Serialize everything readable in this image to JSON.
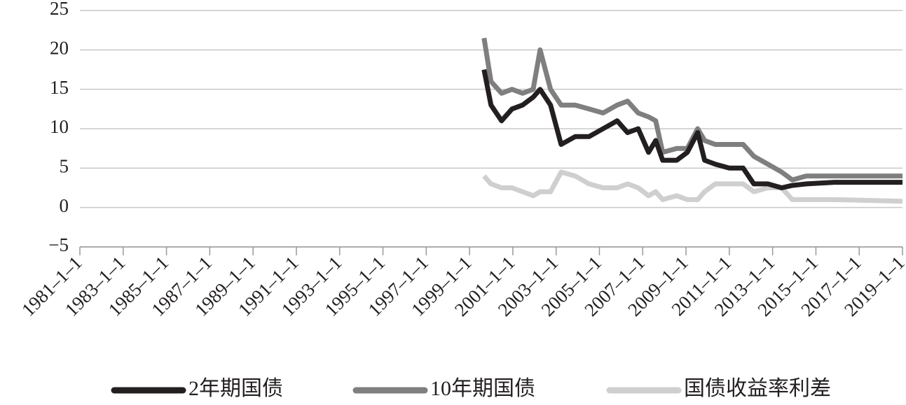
{
  "chart_data": {
    "type": "line",
    "x": [
      1999.67,
      1999.99,
      2000.48,
      2000.96,
      2001.45,
      2001.94,
      2002.26,
      2002.74,
      2003.23,
      2003.88,
      2004.52,
      2005.17,
      2005.82,
      2006.3,
      2006.79,
      2007.27,
      2007.6,
      2007.92,
      2008.57,
      2009.06,
      2009.54,
      2009.86,
      2010.35,
      2011.0,
      2011.64,
      2012.13,
      2012.78,
      2013.42,
      2013.91,
      2014.56,
      2015.85,
      2019.0
    ],
    "series": [
      {
        "name": "2年期国债",
        "color": "#231f20",
        "values": [
          17.5,
          13,
          11,
          12.5,
          13,
          14,
          15,
          13,
          8,
          9,
          9,
          10,
          11,
          9.5,
          10,
          7,
          8.5,
          6,
          6,
          7,
          9.5,
          6,
          5.5,
          5,
          5,
          3,
          3,
          2.5,
          2.8,
          3,
          3.2,
          3.2
        ]
      },
      {
        "name": "10年期国债",
        "color": "#7f7f7f",
        "values": [
          21.5,
          16,
          14.5,
          15,
          14.5,
          15,
          20,
          15,
          13,
          13,
          12.5,
          12,
          13,
          13.5,
          12,
          11.5,
          11,
          7,
          7.5,
          7.5,
          10,
          8.5,
          8,
          8,
          8,
          6.5,
          5.5,
          4.5,
          3.5,
          4,
          4,
          4
        ]
      },
      {
        "name": "国债收益率利差",
        "color": "#cfcfcf",
        "values": [
          4,
          3,
          2.5,
          2.5,
          2,
          1.5,
          2,
          2,
          4.5,
          4,
          3,
          2.5,
          2.5,
          3,
          2.5,
          1.5,
          2,
          1,
          1.5,
          1,
          1,
          2,
          3,
          3,
          3,
          2,
          2.5,
          2.5,
          1,
          1,
          1,
          0.8
        ]
      }
    ],
    "xlim": [
      1981,
      2019
    ],
    "xticks": [
      {
        "value": 1981,
        "label": "1981–1–1"
      },
      {
        "value": 1983,
        "label": "1983–1–1"
      },
      {
        "value": 1985,
        "label": "1985–1–1"
      },
      {
        "value": 1987,
        "label": "1987–1–1"
      },
      {
        "value": 1989,
        "label": "1989–1–1"
      },
      {
        "value": 1991,
        "label": "1991–1–1"
      },
      {
        "value": 1993,
        "label": "1993–1–1"
      },
      {
        "value": 1995,
        "label": "1995–1–1"
      },
      {
        "value": 1997,
        "label": "1997–1–1"
      },
      {
        "value": 1999,
        "label": "1999–1–1"
      },
      {
        "value": 2001,
        "label": "2001–1–1"
      },
      {
        "value": 2003,
        "label": "2003–1–1"
      },
      {
        "value": 2005,
        "label": "2005–1–1"
      },
      {
        "value": 2007,
        "label": "2007–1–1"
      },
      {
        "value": 2009,
        "label": "2009–1–1"
      },
      {
        "value": 2011,
        "label": "2011–1–1"
      },
      {
        "value": 2013,
        "label": "2013–1–1"
      },
      {
        "value": 2015,
        "label": "2015–1–1"
      },
      {
        "value": 2017,
        "label": "2017–1–1"
      },
      {
        "value": 2019,
        "label": "2019–1–1"
      }
    ],
    "ylim": [
      -5,
      25
    ],
    "yticks": [
      {
        "value": -5,
        "label": "−5"
      },
      0,
      5,
      10,
      15,
      20,
      25
    ],
    "grid": true
  }
}
